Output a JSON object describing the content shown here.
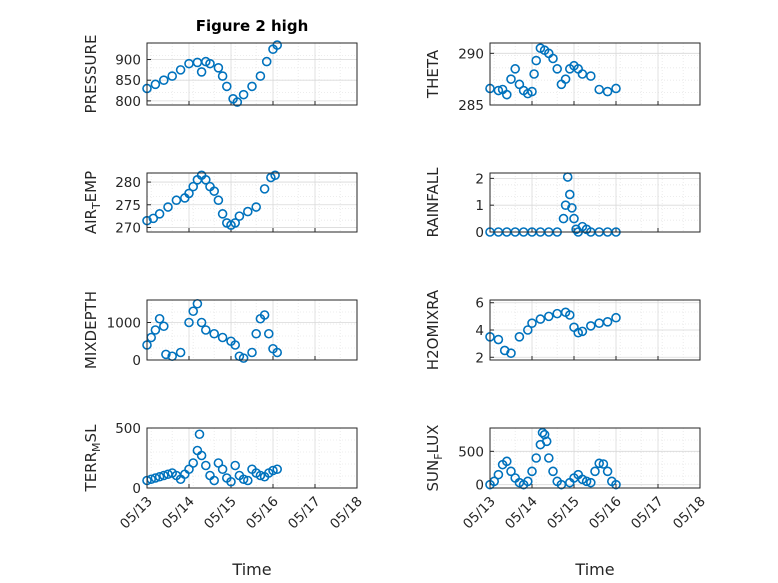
{
  "figure": {
    "title": "Figure 2 high",
    "marker_color": "#0072BD",
    "axis_color": "#262626",
    "grid_color": "#d9d9d9",
    "background": "#ffffff",
    "marker": "open-circle"
  },
  "x_axis": {
    "xlabel": "Time",
    "ticks": [
      0,
      1,
      2,
      3,
      4,
      5
    ],
    "tick_labels": [
      "05/13",
      "05/14",
      "05/15",
      "05/16",
      "05/17",
      "05/18"
    ],
    "xlim": [
      0,
      5
    ],
    "tick_label_rotation_deg": 45,
    "unit": "days"
  },
  "chart_data": [
    {
      "type": "scatter",
      "panel": "PRESSURE",
      "ylabel": "PRESSURE",
      "title": "Figure 2 high",
      "ylim": [
        790,
        940
      ],
      "yticks": [
        800,
        850,
        900
      ],
      "ytick_labels": [
        "800",
        "850",
        "900"
      ],
      "grid": true,
      "series": [
        {
          "name": "",
          "points": [
            [
              0.0,
              830
            ],
            [
              0.2,
              840
            ],
            [
              0.4,
              850
            ],
            [
              0.6,
              860
            ],
            [
              0.8,
              875
            ],
            [
              1.0,
              890
            ],
            [
              1.2,
              893
            ],
            [
              1.3,
              870
            ],
            [
              1.4,
              895
            ],
            [
              1.5,
              890
            ],
            [
              1.7,
              880
            ],
            [
              1.8,
              860
            ],
            [
              1.9,
              835
            ],
            [
              2.05,
              805
            ],
            [
              2.15,
              797
            ],
            [
              2.3,
              815
            ],
            [
              2.5,
              835
            ],
            [
              2.7,
              860
            ],
            [
              2.85,
              895
            ],
            [
              3.0,
              925
            ],
            [
              3.1,
              935
            ]
          ]
        }
      ]
    },
    {
      "type": "scatter",
      "panel": "THETA",
      "ylabel": "THETA",
      "ylim": [
        285,
        291
      ],
      "yticks": [
        285,
        290
      ],
      "ytick_labels": [
        "285",
        "290"
      ],
      "grid": true,
      "series": [
        {
          "name": "",
          "points": [
            [
              0.0,
              286.6
            ],
            [
              0.2,
              286.4
            ],
            [
              0.3,
              286.5
            ],
            [
              0.4,
              286.0
            ],
            [
              0.5,
              287.5
            ],
            [
              0.6,
              288.5
            ],
            [
              0.7,
              287.0
            ],
            [
              0.8,
              286.4
            ],
            [
              0.9,
              286.1
            ],
            [
              1.0,
              286.3
            ],
            [
              1.05,
              288.0
            ],
            [
              1.1,
              289.3
            ],
            [
              1.2,
              290.5
            ],
            [
              1.3,
              290.3
            ],
            [
              1.4,
              290.0
            ],
            [
              1.5,
              289.5
            ],
            [
              1.6,
              288.5
            ],
            [
              1.7,
              287.0
            ],
            [
              1.8,
              287.5
            ],
            [
              1.9,
              288.5
            ],
            [
              2.0,
              288.8
            ],
            [
              2.1,
              288.5
            ],
            [
              2.2,
              288.0
            ],
            [
              2.4,
              287.8
            ],
            [
              2.6,
              286.5
            ],
            [
              2.8,
              286.3
            ],
            [
              3.0,
              286.6
            ]
          ]
        }
      ]
    },
    {
      "type": "scatter",
      "panel": "AIR_TEMP",
      "ylabel": "AIR_TEMP",
      "ylim": [
        269,
        282
      ],
      "yticks": [
        270,
        275,
        280
      ],
      "ytick_labels": [
        "270",
        "275",
        "280"
      ],
      "grid": true,
      "series": [
        {
          "name": "",
          "points": [
            [
              0.0,
              271.5
            ],
            [
              0.15,
              272.0
            ],
            [
              0.3,
              273.0
            ],
            [
              0.5,
              274.5
            ],
            [
              0.7,
              276.0
            ],
            [
              0.9,
              276.5
            ],
            [
              1.0,
              277.5
            ],
            [
              1.1,
              279.0
            ],
            [
              1.2,
              280.5
            ],
            [
              1.3,
              281.5
            ],
            [
              1.4,
              280.5
            ],
            [
              1.5,
              279.0
            ],
            [
              1.6,
              278.0
            ],
            [
              1.7,
              276.0
            ],
            [
              1.8,
              273.0
            ],
            [
              1.9,
              271.0
            ],
            [
              2.0,
              270.5
            ],
            [
              2.1,
              271.0
            ],
            [
              2.2,
              272.5
            ],
            [
              2.4,
              273.5
            ],
            [
              2.6,
              274.5
            ],
            [
              2.8,
              278.5
            ],
            [
              2.95,
              281.0
            ],
            [
              3.05,
              281.5
            ]
          ]
        }
      ]
    },
    {
      "type": "scatter",
      "panel": "RAINFALL",
      "ylabel": "RAINFALL",
      "ylim": [
        0,
        2.2
      ],
      "yticks": [
        0,
        1,
        2
      ],
      "ytick_labels": [
        "0",
        "1",
        "2"
      ],
      "grid": true,
      "series": [
        {
          "name": "",
          "points": [
            [
              0.0,
              0
            ],
            [
              0.2,
              0
            ],
            [
              0.4,
              0
            ],
            [
              0.6,
              0
            ],
            [
              0.8,
              0
            ],
            [
              1.0,
              0
            ],
            [
              1.2,
              0
            ],
            [
              1.4,
              0
            ],
            [
              1.6,
              0
            ],
            [
              1.75,
              0.5
            ],
            [
              1.8,
              1.0
            ],
            [
              1.85,
              2.05
            ],
            [
              1.9,
              1.4
            ],
            [
              1.95,
              0.9
            ],
            [
              2.0,
              0.5
            ],
            [
              2.05,
              0.1
            ],
            [
              2.1,
              0
            ],
            [
              2.2,
              0.2
            ],
            [
              2.3,
              0.1
            ],
            [
              2.4,
              0
            ],
            [
              2.6,
              0
            ],
            [
              2.8,
              0
            ],
            [
              3.0,
              0
            ]
          ]
        }
      ]
    },
    {
      "type": "scatter",
      "panel": "MIXDEPTH",
      "ylabel": "MIXDEPTH",
      "ylim": [
        0,
        1600
      ],
      "yticks": [
        0,
        1000
      ],
      "ytick_labels": [
        "0",
        "1000"
      ],
      "grid": true,
      "series": [
        {
          "name": "",
          "points": [
            [
              0.0,
              400
            ],
            [
              0.1,
              600
            ],
            [
              0.2,
              800
            ],
            [
              0.3,
              1100
            ],
            [
              0.4,
              900
            ],
            [
              0.45,
              150
            ],
            [
              0.6,
              100
            ],
            [
              0.8,
              200
            ],
            [
              1.0,
              1000
            ],
            [
              1.1,
              1300
            ],
            [
              1.2,
              1500
            ],
            [
              1.3,
              1000
            ],
            [
              1.4,
              800
            ],
            [
              1.6,
              700
            ],
            [
              1.8,
              600
            ],
            [
              2.0,
              500
            ],
            [
              2.1,
              400
            ],
            [
              2.2,
              100
            ],
            [
              2.3,
              50
            ],
            [
              2.5,
              200
            ],
            [
              2.6,
              700
            ],
            [
              2.7,
              1100
            ],
            [
              2.8,
              1200
            ],
            [
              2.9,
              700
            ],
            [
              3.0,
              300
            ],
            [
              3.1,
              200
            ]
          ]
        }
      ]
    },
    {
      "type": "scatter",
      "panel": "H2OMIXRA",
      "ylabel": "H2OMIXRA",
      "ylim": [
        1.8,
        6.2
      ],
      "yticks": [
        2,
        4,
        6
      ],
      "ytick_labels": [
        "2",
        "4",
        "6"
      ],
      "grid": true,
      "series": [
        {
          "name": "",
          "points": [
            [
              0.0,
              3.5
            ],
            [
              0.2,
              3.3
            ],
            [
              0.35,
              2.5
            ],
            [
              0.5,
              2.3
            ],
            [
              0.7,
              3.5
            ],
            [
              0.9,
              4.0
            ],
            [
              1.0,
              4.5
            ],
            [
              1.2,
              4.8
            ],
            [
              1.4,
              5.0
            ],
            [
              1.6,
              5.2
            ],
            [
              1.8,
              5.3
            ],
            [
              1.9,
              5.1
            ],
            [
              2.0,
              4.2
            ],
            [
              2.1,
              3.8
            ],
            [
              2.2,
              3.9
            ],
            [
              2.4,
              4.3
            ],
            [
              2.6,
              4.5
            ],
            [
              2.8,
              4.6
            ],
            [
              3.0,
              4.9
            ]
          ]
        }
      ]
    },
    {
      "type": "scatter",
      "panel": "TERR_MSL",
      "ylabel": "TERR_MSL",
      "ylim": [
        0,
        480
      ],
      "yticks": [
        0,
        500
      ],
      "ytick_labels": [
        "0",
        "500"
      ],
      "grid": true,
      "series": [
        {
          "name": "",
          "points": [
            [
              0.0,
              60
            ],
            [
              0.1,
              70
            ],
            [
              0.2,
              80
            ],
            [
              0.3,
              90
            ],
            [
              0.4,
              100
            ],
            [
              0.5,
              110
            ],
            [
              0.6,
              120
            ],
            [
              0.7,
              100
            ],
            [
              0.8,
              70
            ],
            [
              0.9,
              110
            ],
            [
              1.0,
              150
            ],
            [
              1.1,
              200
            ],
            [
              1.2,
              300
            ],
            [
              1.25,
              430
            ],
            [
              1.3,
              260
            ],
            [
              1.4,
              180
            ],
            [
              1.5,
              100
            ],
            [
              1.6,
              60
            ],
            [
              1.7,
              200
            ],
            [
              1.8,
              150
            ],
            [
              1.9,
              80
            ],
            [
              2.0,
              50
            ],
            [
              2.1,
              180
            ],
            [
              2.2,
              100
            ],
            [
              2.3,
              70
            ],
            [
              2.4,
              60
            ],
            [
              2.5,
              150
            ],
            [
              2.6,
              120
            ],
            [
              2.7,
              100
            ],
            [
              2.8,
              90
            ],
            [
              2.9,
              120
            ],
            [
              3.0,
              140
            ],
            [
              3.1,
              150
            ]
          ]
        }
      ]
    },
    {
      "type": "scatter",
      "panel": "SUN_FLUX",
      "ylabel": "SUN_FLUX",
      "ylim": [
        -50,
        850
      ],
      "yticks": [
        0,
        500
      ],
      "ytick_labels": [
        "0",
        "500"
      ],
      "grid": true,
      "series": [
        {
          "name": "",
          "points": [
            [
              0.0,
              0
            ],
            [
              0.1,
              50
            ],
            [
              0.2,
              150
            ],
            [
              0.3,
              300
            ],
            [
              0.4,
              350
            ],
            [
              0.5,
              200
            ],
            [
              0.6,
              100
            ],
            [
              0.7,
              30
            ],
            [
              0.8,
              0
            ],
            [
              0.9,
              50
            ],
            [
              1.0,
              200
            ],
            [
              1.1,
              400
            ],
            [
              1.2,
              600
            ],
            [
              1.25,
              780
            ],
            [
              1.3,
              750
            ],
            [
              1.35,
              650
            ],
            [
              1.4,
              400
            ],
            [
              1.5,
              200
            ],
            [
              1.6,
              50
            ],
            [
              1.7,
              0
            ],
            [
              1.9,
              30
            ],
            [
              2.0,
              100
            ],
            [
              2.1,
              150
            ],
            [
              2.2,
              80
            ],
            [
              2.3,
              50
            ],
            [
              2.4,
              30
            ],
            [
              2.5,
              200
            ],
            [
              2.6,
              320
            ],
            [
              2.7,
              310
            ],
            [
              2.8,
              200
            ],
            [
              2.9,
              50
            ],
            [
              3.0,
              0
            ]
          ]
        }
      ]
    }
  ]
}
